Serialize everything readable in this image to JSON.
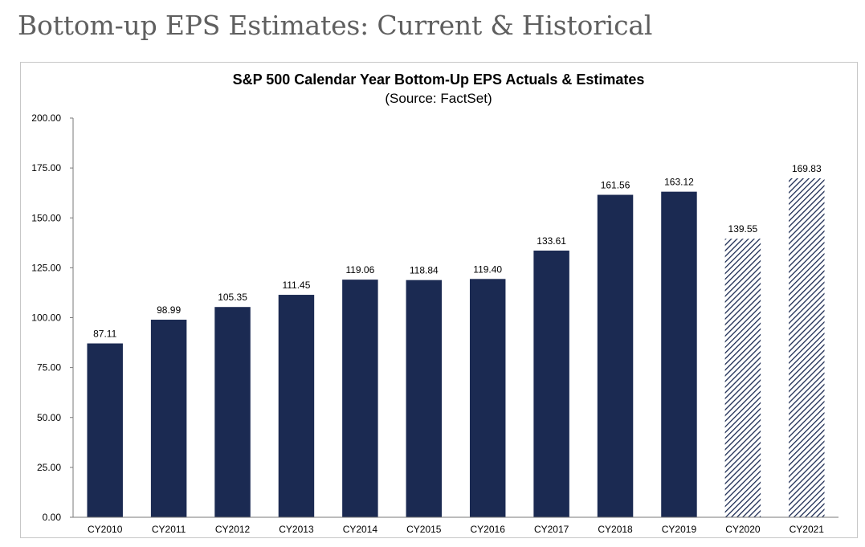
{
  "page": {
    "heading": "Bottom-up EPS Estimates: Current & Historical"
  },
  "colors": {
    "actual_bar": "#1b2a52",
    "estimate_hatch": "#1b2a52",
    "axis": "#7a7a7a"
  },
  "chart_data": {
    "type": "bar",
    "title": "S&P 500 Calendar Year Bottom-Up EPS Actuals & Estimates",
    "subtitle": "(Source: FactSet)",
    "xlabel": "",
    "ylabel": "",
    "ylim": [
      0,
      200
    ],
    "yticks": [
      0,
      25,
      50,
      75,
      100,
      125,
      150,
      175,
      200
    ],
    "ytick_labels": [
      "0.00",
      "25.00",
      "50.00",
      "75.00",
      "100.00",
      "125.00",
      "150.00",
      "175.00",
      "200.00"
    ],
    "grid": false,
    "categories": [
      "CY2010",
      "CY2011",
      "CY2012",
      "CY2013",
      "CY2014",
      "CY2015",
      "CY2016",
      "CY2017",
      "CY2018",
      "CY2019",
      "CY2020",
      "CY2021"
    ],
    "values": [
      87.11,
      98.99,
      105.35,
      111.45,
      119.06,
      118.84,
      119.4,
      133.61,
      161.56,
      163.12,
      139.55,
      169.83
    ],
    "value_labels": [
      "87.11",
      "98.99",
      "105.35",
      "111.45",
      "119.06",
      "118.84",
      "119.40",
      "133.61",
      "161.56",
      "163.12",
      "139.55",
      "169.83"
    ],
    "estimate": [
      false,
      false,
      false,
      false,
      false,
      false,
      false,
      false,
      false,
      false,
      true,
      true
    ]
  }
}
